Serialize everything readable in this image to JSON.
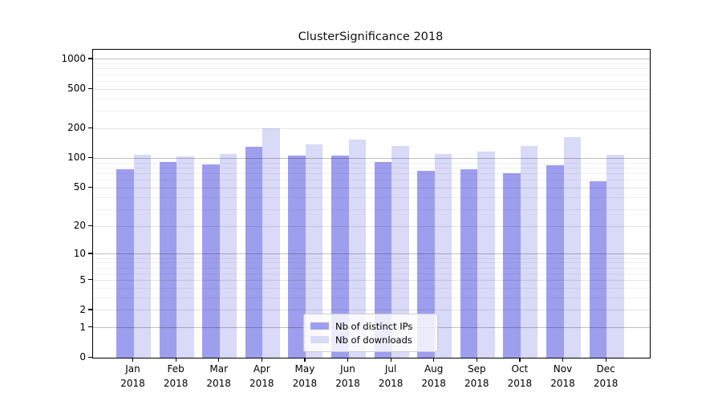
{
  "chart_data": {
    "type": "bar",
    "title": "ClusterSignificance 2018",
    "categories": [
      "Jan 2018",
      "Feb 2018",
      "Mar 2018",
      "Apr 2018",
      "May 2018",
      "Jun 2018",
      "Jul 2018",
      "Aug 2018",
      "Sep 2018",
      "Oct 2018",
      "Nov 2018",
      "Dec 2018"
    ],
    "series": [
      {
        "name": "Nb of distinct IPs",
        "color": "#9e9eef",
        "values": [
          78,
          92,
          87,
          132,
          106,
          106,
          92,
          75,
          78,
          70,
          86,
          58
        ]
      },
      {
        "name": "Nb of downloads",
        "color": "#d9d9f8",
        "values": [
          108,
          105,
          111,
          200,
          139,
          156,
          134,
          111,
          118,
          133,
          164,
          109
        ]
      }
    ],
    "yscale": "log1p",
    "ylim": [
      0,
      1250
    ],
    "yticks": [
      0,
      1,
      2,
      5,
      10,
      20,
      50,
      100,
      200,
      500,
      1000
    ],
    "minor_yticks": [
      3,
      4,
      6,
      7,
      8,
      9,
      30,
      40,
      60,
      70,
      80,
      90,
      300,
      400,
      600,
      700,
      800,
      900
    ],
    "grid": true,
    "legend_position": "lower center",
    "colors": {
      "major_gridline": "rgba(0,0,0,0.25)",
      "mid_gridline": "rgba(0,0,0,0.11)",
      "minor_gridline": "rgba(0,0,0,0.06)",
      "axis": "#000000"
    }
  }
}
